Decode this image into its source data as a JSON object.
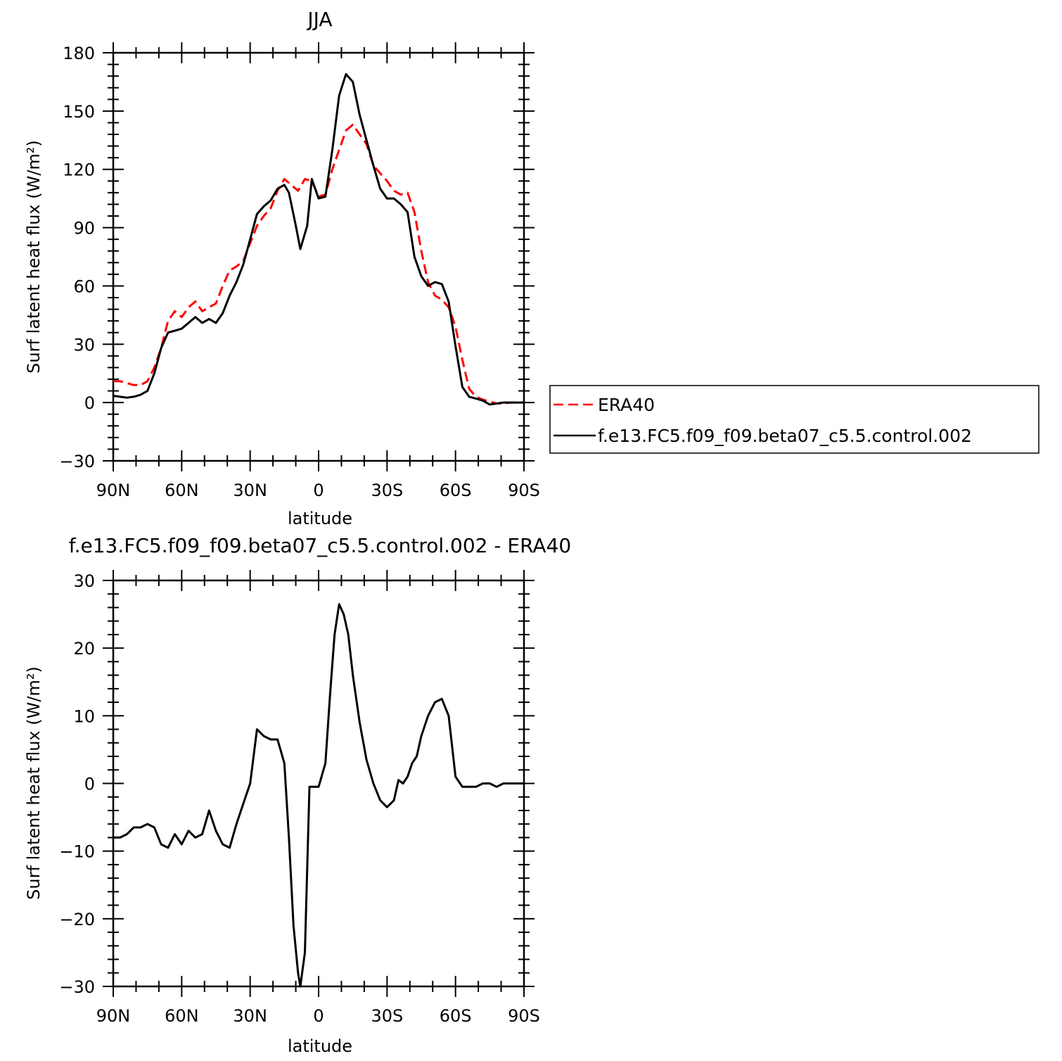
{
  "chart_data": [
    {
      "type": "line",
      "title": "JJA",
      "xlabel": "latitude",
      "ylabel": "Surf latent heat flux (W/m²)",
      "ylim": [
        -30,
        180
      ],
      "yticks": [
        -30,
        0,
        30,
        60,
        90,
        120,
        150,
        180
      ],
      "xlim": [
        90,
        -90
      ],
      "xticks": [
        90,
        60,
        30,
        0,
        -30,
        -60,
        -90
      ],
      "xtick_labels": [
        "90N",
        "60N",
        "30N",
        "0",
        "30S",
        "60S",
        "90S"
      ],
      "legend": "right",
      "series": [
        {
          "name": "ERA40",
          "color": "#ff0000",
          "dash": "dashed",
          "x": [
            90,
            87,
            84,
            81,
            78,
            75,
            72,
            69,
            66,
            63,
            60,
            57,
            54,
            51,
            48,
            45,
            42,
            39,
            36,
            33,
            30,
            27,
            24,
            21,
            18,
            15,
            13,
            9,
            6,
            3,
            0,
            -3,
            -6,
            -9,
            -12,
            -15,
            -18,
            -21,
            -24,
            -27,
            -30,
            -33,
            -36,
            -39,
            -42,
            -45,
            -48,
            -51,
            -54,
            -57,
            -60,
            -63,
            -66,
            -69,
            -72,
            -75,
            -78,
            -81,
            -84,
            -87,
            -90
          ],
          "y": [
            11,
            11,
            10,
            9,
            9,
            11,
            18,
            28,
            42,
            47,
            44,
            49,
            52,
            47,
            49,
            51,
            60,
            68,
            70,
            73,
            82,
            91,
            96,
            100,
            109,
            115,
            113,
            109,
            115,
            114,
            106,
            107,
            120,
            130,
            140,
            143,
            138,
            133,
            122,
            118,
            114,
            109,
            107,
            108,
            98,
            78,
            62,
            55,
            53,
            49,
            39,
            22,
            7,
            3,
            1.5,
            0.5,
            -0.5,
            -0.5,
            0,
            0,
            0
          ]
        },
        {
          "name": "f.e13.FC5.f09_f09.beta07_c5.5.control.002",
          "color": "#000000",
          "dash": "solid",
          "x": [
            90,
            87,
            84,
            81,
            78,
            75,
            72,
            69,
            66,
            63,
            60,
            57,
            54,
            51,
            48,
            45,
            42,
            39,
            36,
            33,
            30,
            27,
            24,
            21,
            18,
            15,
            13,
            10,
            8,
            5,
            3,
            0,
            -3,
            -6,
            -9,
            -12,
            -15,
            -18,
            -21,
            -24,
            -27,
            -30,
            -33,
            -36,
            -39,
            -42,
            -45,
            -48,
            -51,
            -54,
            -57,
            -60,
            -63,
            -66,
            -69,
            -72,
            -75,
            -78,
            -81,
            -84,
            -87,
            -90
          ],
          "y": [
            3.5,
            3,
            2.5,
            3,
            4,
            6,
            15,
            28,
            36,
            37,
            38,
            41,
            44,
            41,
            43,
            41,
            46,
            55,
            62,
            71,
            84,
            97,
            101,
            104,
            110,
            112,
            108,
            91,
            79,
            91,
            115,
            105,
            106,
            130,
            158,
            169,
            165,
            148,
            135,
            122,
            110,
            105,
            105,
            102,
            98,
            75,
            65,
            60,
            62,
            61,
            52,
            29,
            8,
            3,
            2,
            1,
            -1,
            -0.5,
            0,
            0,
            0,
            0
          ]
        }
      ]
    },
    {
      "type": "line",
      "title": "f.e13.FC5.f09_f09.beta07_c5.5.control.002 - ERA40",
      "xlabel": "latitude",
      "ylabel": "Surf latent heat flux (W/m²)",
      "ylim": [
        -30,
        30
      ],
      "yticks": [
        -30,
        -20,
        -10,
        0,
        10,
        20,
        30
      ],
      "xlim": [
        90,
        -90
      ],
      "xticks": [
        90,
        60,
        30,
        0,
        -30,
        -60,
        -90
      ],
      "xtick_labels": [
        "90N",
        "60N",
        "30N",
        "0",
        "30S",
        "60S",
        "90S"
      ],
      "series": [
        {
          "color": "#000000",
          "dash": "solid",
          "x": [
            90,
            87,
            84,
            81,
            78,
            75,
            72,
            69,
            66,
            63,
            60,
            57,
            54,
            51,
            48,
            45,
            42,
            39,
            36,
            33,
            30,
            27,
            24,
            21,
            18,
            15,
            13,
            11,
            9,
            8,
            6,
            4,
            2,
            0,
            -3,
            -5,
            -7,
            -9,
            -11,
            -13,
            -15,
            -18,
            -21,
            -24,
            -27,
            -30,
            -33,
            -35,
            -37,
            -39,
            -41,
            -43,
            -45,
            -48,
            -51,
            -54,
            -57,
            -60,
            -63,
            -66,
            -69,
            -72,
            -75,
            -78,
            -81,
            -84,
            -87,
            -90
          ],
          "y": [
            -8,
            -8,
            -7.5,
            -6.5,
            -6.5,
            -6,
            -6.5,
            -9,
            -9.5,
            -7.5,
            -9,
            -7,
            -8,
            -7.5,
            -4,
            -7,
            -9,
            -9.5,
            -6,
            -3,
            0,
            8,
            7,
            6.5,
            6.5,
            3,
            -8,
            -21,
            -28,
            -30,
            -25,
            -0.5,
            -0.5,
            -0.5,
            3,
            13,
            22,
            26.5,
            25,
            22,
            16,
            9,
            3.5,
            0,
            -2.5,
            -3.5,
            -2.5,
            0.5,
            0,
            1,
            3,
            4,
            7,
            10,
            12,
            12.5,
            10,
            1,
            -0.5,
            -0.5,
            -0.5,
            0,
            0,
            -0.5,
            0,
            0,
            0,
            0
          ]
        }
      ]
    }
  ]
}
